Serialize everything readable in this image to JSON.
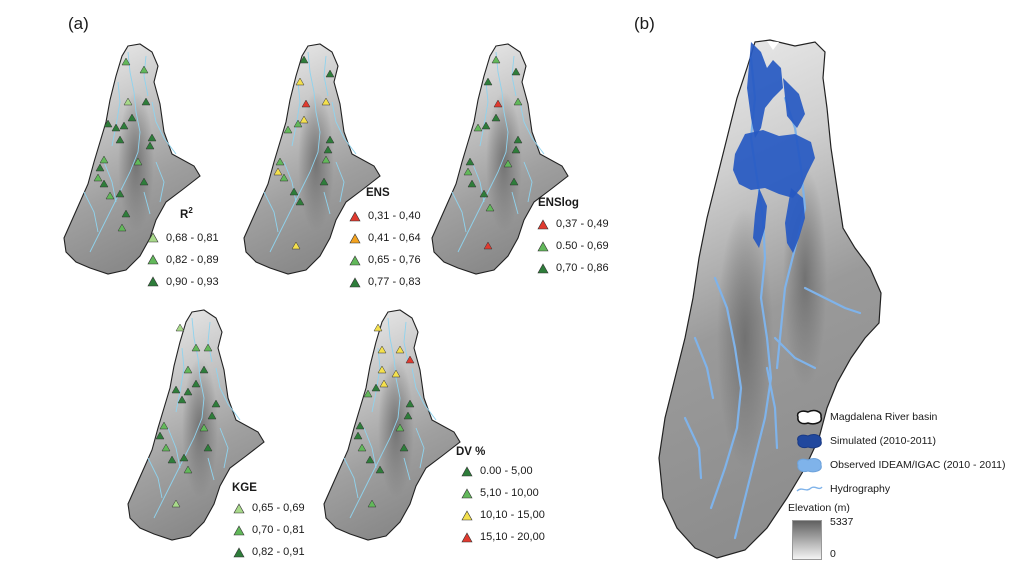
{
  "figure": {
    "panel_a_label": "(a)",
    "panel_b_label": "(b)"
  },
  "colors": {
    "red": "#e03a2f",
    "orange": "#f3a21f",
    "yellow": "#f4e04d",
    "light_green": "#a8d98a",
    "green": "#62b85a",
    "dark_green": "#2e7d3a",
    "river": "#8fd3ee",
    "simulated": "#2659c2",
    "observed": "#7fb3ea"
  },
  "maps": [
    {
      "id": "r2",
      "title_base": "R",
      "title_sup": "2",
      "items": [
        {
          "label": "0,68 - 0,81",
          "color": "#a8d98a"
        },
        {
          "label": "0,82 - 0,89",
          "color": "#62b85a"
        },
        {
          "label": "0,90 - 0,93",
          "color": "#2e7d3a"
        }
      ]
    },
    {
      "id": "ens",
      "title": "ENS",
      "items": [
        {
          "label": "0,31 - 0,40",
          "color": "#e03a2f"
        },
        {
          "label": "0,41 - 0,64",
          "color": "#f3a21f"
        },
        {
          "label": "0,65 - 0,76",
          "color": "#62b85a"
        },
        {
          "label": "0,77 - 0,83",
          "color": "#2e7d3a"
        }
      ]
    },
    {
      "id": "enslog",
      "title": "ENSlog",
      "items": [
        {
          "label": "0,37 - 0,49",
          "color": "#e03a2f"
        },
        {
          "label": "0.50 - 0,69",
          "color": "#62b85a"
        },
        {
          "label": "0,70 - 0,86",
          "color": "#2e7d3a"
        }
      ]
    },
    {
      "id": "kge",
      "title": "KGE",
      "items": [
        {
          "label": "0,65 - 0,69",
          "color": "#a8d98a"
        },
        {
          "label": "0,70 - 0,81",
          "color": "#62b85a"
        },
        {
          "label": "0,82 - 0,91",
          "color": "#2e7d3a"
        }
      ]
    },
    {
      "id": "dv",
      "title": "DV %",
      "items": [
        {
          "label": "0.00 - 5,00",
          "color": "#2e7d3a"
        },
        {
          "label": "5,10 - 10,00",
          "color": "#62b85a"
        },
        {
          "label": "10,10 - 15,00",
          "color": "#f4e04d"
        },
        {
          "label": "15,10 - 20,00",
          "color": "#e03a2f"
        }
      ]
    }
  ],
  "panel_b": {
    "legend": [
      {
        "label": "Magdalena River basin",
        "symbol": "basin-outline"
      },
      {
        "label": "Simulated (2010-2011)",
        "symbol": "simulated-fill"
      },
      {
        "label": "Observed IDEAM/IGAC (2010 - 2011)",
        "symbol": "observed-fill"
      },
      {
        "label": "Hydrography",
        "symbol": "river-line"
      }
    ],
    "elevation": {
      "title": "Elevation (m)",
      "max": "5337",
      "min": "0"
    }
  }
}
